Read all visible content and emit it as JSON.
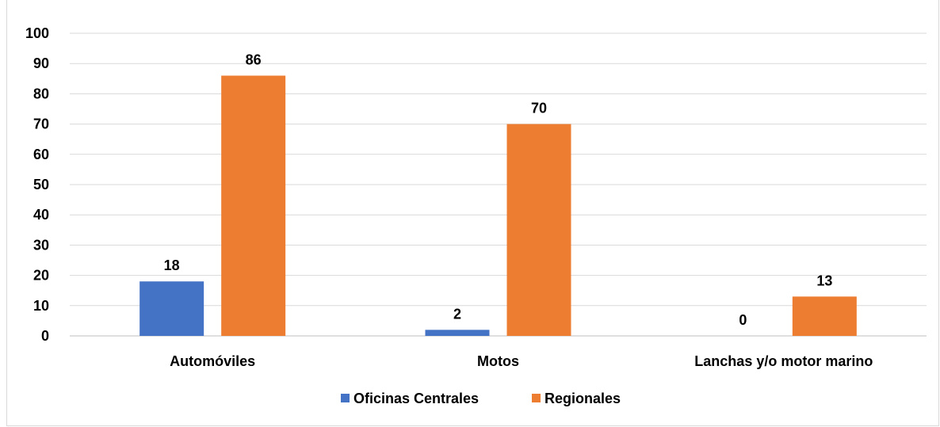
{
  "chart_data": {
    "type": "bar",
    "title": "",
    "categories": [
      "Automóviles",
      "Motos",
      "Lanchas y/o motor marino"
    ],
    "series": [
      {
        "name": "Oficinas Centrales",
        "values": [
          18,
          2,
          0
        ],
        "color": "#4472C4"
      },
      {
        "name": "Regionales",
        "values": [
          86,
          70,
          13
        ],
        "color": "#ED7D31"
      }
    ],
    "yticks": [
      0,
      10,
      20,
      30,
      40,
      50,
      60,
      70,
      80,
      90,
      100
    ],
    "ylim": [
      0,
      100
    ],
    "xlabel": "",
    "ylabel": "",
    "grid": true,
    "legend_position": "bottom"
  }
}
